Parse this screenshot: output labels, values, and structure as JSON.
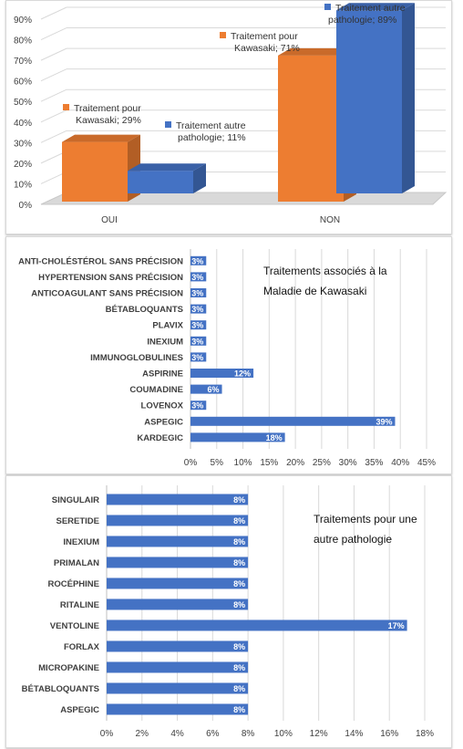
{
  "chart_data": [
    {
      "type": "bar",
      "categories": [
        "OUI",
        "NON"
      ],
      "series": [
        {
          "name": "Traitement pour Kawasaki",
          "values": [
            29,
            71
          ],
          "color": "#ed7d31"
        },
        {
          "name": "Traitement autre pathologie",
          "values": [
            11,
            89
          ],
          "color": "#4472c4"
        }
      ],
      "yticks": [
        "0%",
        "10%",
        "20%",
        "30%",
        "40%",
        "50%",
        "60%",
        "70%",
        "80%",
        "90%"
      ],
      "ylim": [
        0,
        90
      ],
      "grid": true,
      "three_d": true,
      "data_labels": [
        {
          "line1": "Traitement pour",
          "line2": "Kawasaki; 29%"
        },
        {
          "line1": "Traitement autre",
          "line2": "pathologie; 11%"
        },
        {
          "line1": "Traitement pour",
          "line2": "Kawasaki; 71%"
        },
        {
          "line1": "Traitement autre",
          "line2": "pathologie; 89%"
        }
      ]
    },
    {
      "type": "bar",
      "orientation": "horizontal",
      "annotation": [
        "Traitements associés à la",
        "Maladie de Kawasaki"
      ],
      "categories": [
        "ANTI-CHOLÉSTÉROL SANS PRÉCISION",
        "HYPERTENSION SANS PRÉCISION",
        "ANTICOAGULANT SANS PRÉCISION",
        "BÉTABLOQUANTS",
        "PLAVIX",
        "INEXIUM",
        "IMMUNOGLOBULINES",
        "ASPIRINE",
        "COUMADINE",
        "LOVENOX",
        "ASPEGIC",
        "KARDEGIC"
      ],
      "values": [
        3,
        3,
        3,
        3,
        3,
        3,
        3,
        12,
        6,
        3,
        39,
        18
      ],
      "value_labels": [
        "3%",
        "3%",
        "3%",
        "3%",
        "3%",
        "3%",
        "3%",
        "12%",
        "6%",
        "3%",
        "39%",
        "18%"
      ],
      "xticks": [
        "0%",
        "5%",
        "10%",
        "15%",
        "20%",
        "25%",
        "30%",
        "35%",
        "40%",
        "45%"
      ],
      "xlim": [
        0,
        45
      ],
      "grid": true,
      "color": "#4472c4"
    },
    {
      "type": "bar",
      "orientation": "horizontal",
      "annotation": [
        "Traitements pour une",
        "autre pathologie"
      ],
      "categories": [
        "SINGULAIR",
        "SERETIDE",
        "INEXIUM",
        "PRIMALAN",
        "ROCÉPHINE",
        "RITALINE",
        "VENTOLINE",
        "FORLAX",
        "MICROPAKINE",
        "BÉTABLOQUANTS",
        "ASPEGIC"
      ],
      "values": [
        8,
        8,
        8,
        8,
        8,
        8,
        17,
        8,
        8,
        8,
        8
      ],
      "value_labels": [
        "8%",
        "8%",
        "8%",
        "8%",
        "8%",
        "8%",
        "17%",
        "8%",
        "8%",
        "8%",
        "8%"
      ],
      "xticks": [
        "0%",
        "2%",
        "4%",
        "6%",
        "8%",
        "10%",
        "12%",
        "14%",
        "16%",
        "18%"
      ],
      "xlim": [
        0,
        18
      ],
      "grid": true,
      "color": "#4472c4"
    }
  ]
}
